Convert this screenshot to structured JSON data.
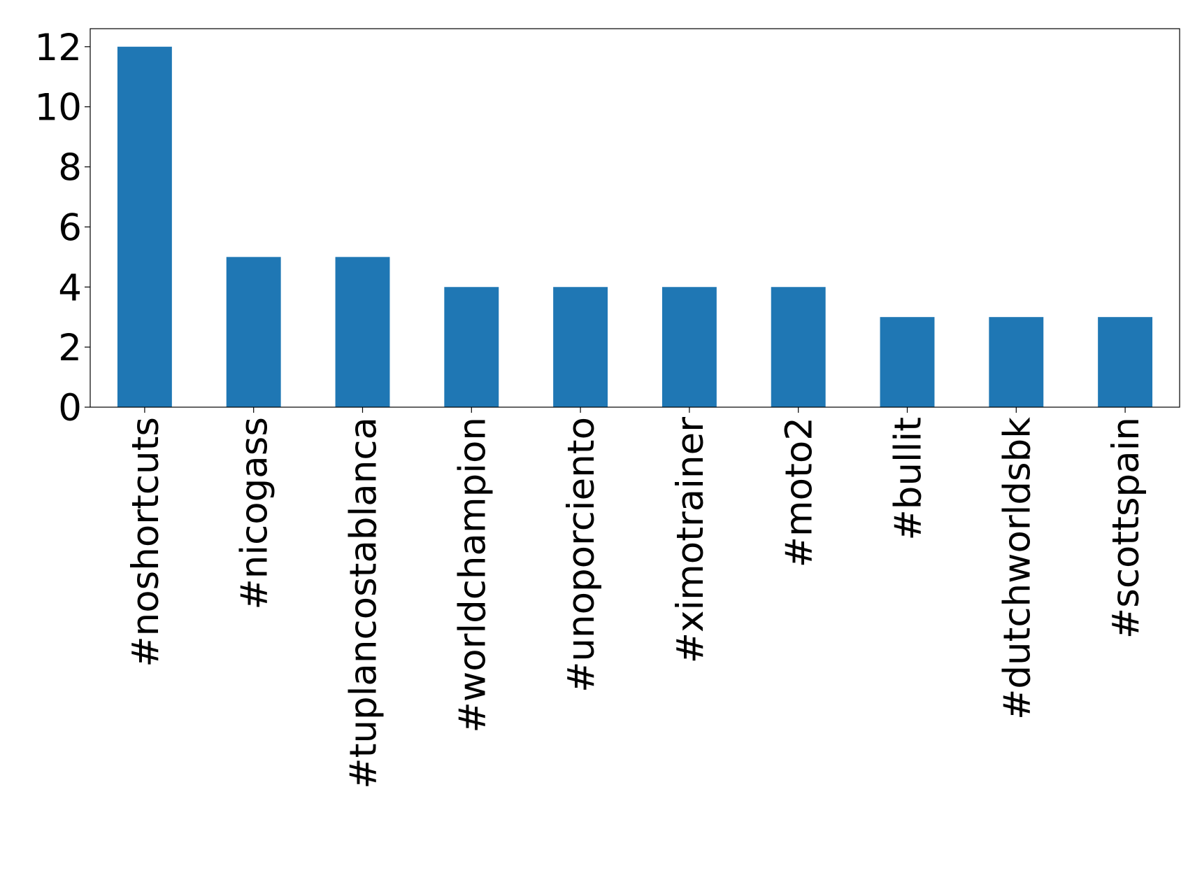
{
  "chart_data": {
    "type": "bar",
    "categories": [
      "#noshortcuts",
      "#nicogass",
      "#tuplancostablanca",
      "#worldchampion",
      "#unoporciento",
      "#ximotrainer",
      "#moto2",
      "#bullit",
      "#dutchworldsbk",
      "#scottspain"
    ],
    "values": [
      12,
      5,
      5,
      4,
      4,
      4,
      4,
      3,
      3,
      3
    ],
    "color": "#1f77b4",
    "ylim": [
      0,
      12.6
    ],
    "yticks": [
      0,
      2,
      4,
      6,
      8,
      10,
      12
    ],
    "grid": false
  }
}
